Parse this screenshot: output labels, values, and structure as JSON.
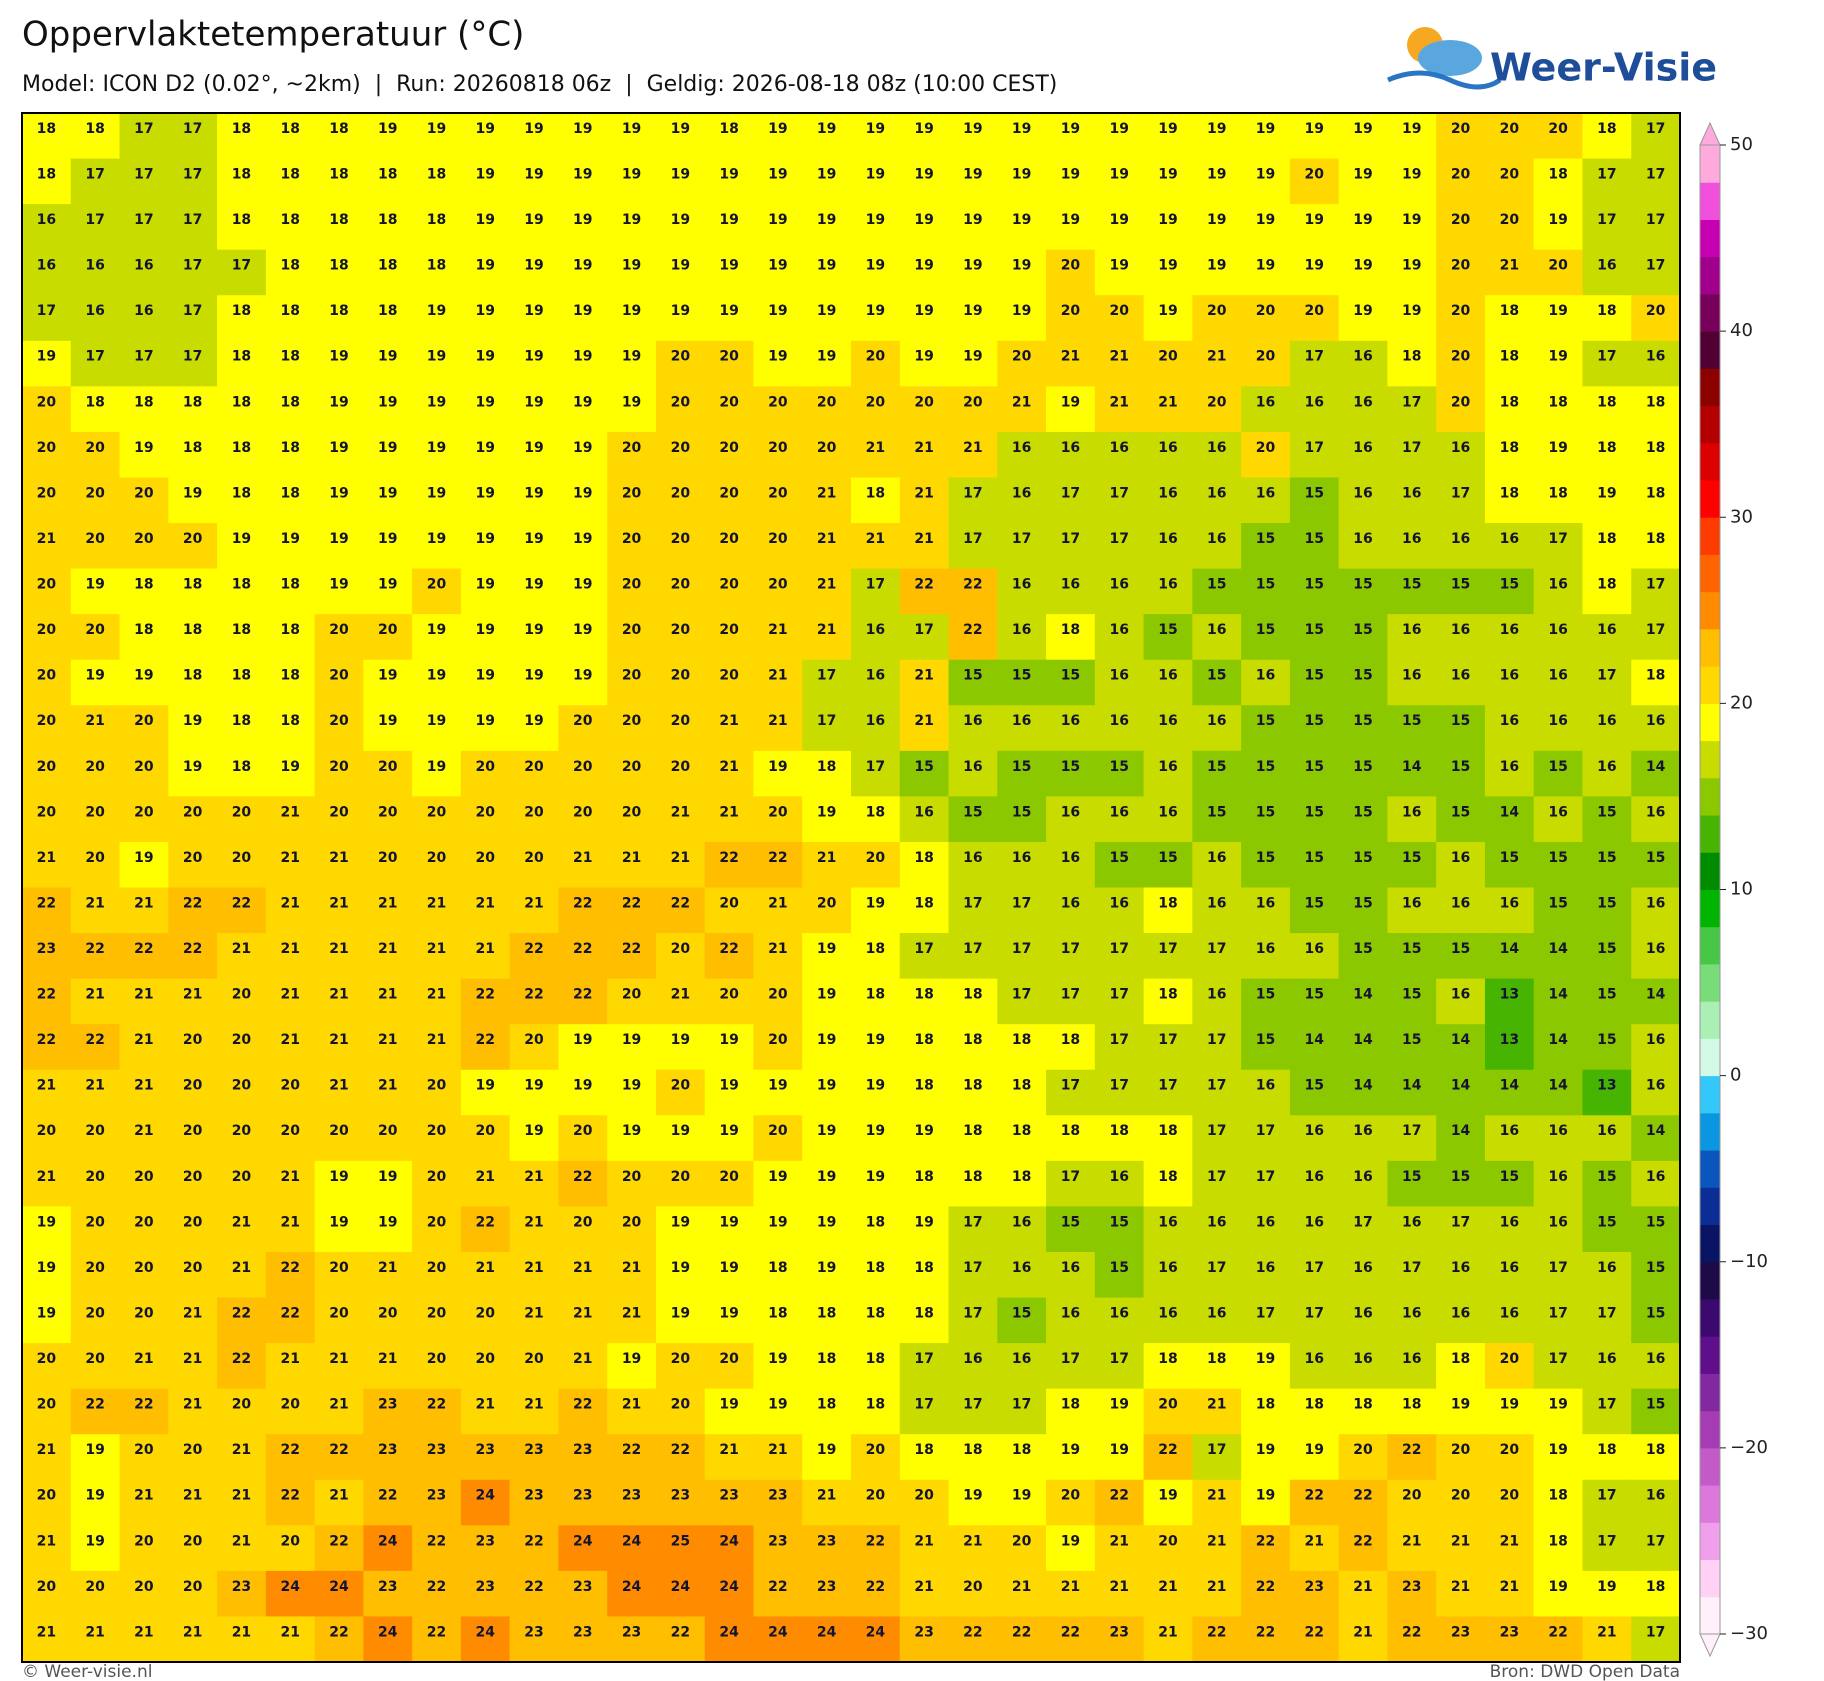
{
  "header": {
    "title": "Oppervlaktetemperatuur (°C)",
    "subtitle": "Model: ICON D2 (0.02°, ~2km)  |  Run: 20260818 06z  |  Geldig: 2026-08-18 08z (10:00 CEST)",
    "logo": "Weer-Visie"
  },
  "footer": {
    "copyright": "© Weer-visie.nl",
    "source": "Bron: DWD Open Data"
  },
  "colorbar": {
    "ticks": [
      50,
      40,
      30,
      20,
      10,
      0,
      {
        "value": -10,
        "label": "−10"
      },
      {
        "value": -20,
        "label": "−20"
      },
      {
        "value": -30,
        "label": "−30"
      }
    ],
    "colors": [
      "#fff0fa",
      "#ffd2f5",
      "#f0a0eb",
      "#dc78dc",
      "#c35ac8",
      "#a53cb4",
      "#8228a0",
      "#5f0f8c",
      "#3c0a6e",
      "#1e0a46",
      "#0a1464",
      "#0a2d96",
      "#0a55be",
      "#0a96e1",
      "#32c8fa",
      "#d2fae6",
      "#aaf0b4",
      "#78dc78",
      "#46c846",
      "#00b400",
      "#008c00",
      "#46b400",
      "#8cc800",
      "#c8dc00",
      "#ffff00",
      "#ffd800",
      "#ffbe00",
      "#ff8c00",
      "#ff6400",
      "#ff3c00",
      "#ff0000",
      "#dc0000",
      "#b40000",
      "#8c0000",
      "#500032",
      "#78005a",
      "#a0008c",
      "#c800b4",
      "#f050dc",
      "#ffaadc"
    ]
  },
  "map": {
    "values": [
      [
        18,
        18,
        17,
        17,
        18,
        18,
        18,
        19,
        19,
        19,
        19,
        19,
        19,
        19,
        18,
        19,
        19,
        19,
        19,
        19,
        19,
        19,
        19,
        19,
        19,
        19,
        19,
        19,
        19,
        20,
        20,
        20,
        18,
        17
      ],
      [
        18,
        17,
        17,
        17,
        18,
        18,
        18,
        18,
        18,
        19,
        19,
        19,
        19,
        19,
        19,
        19,
        19,
        19,
        19,
        19,
        19,
        19,
        19,
        19,
        19,
        19,
        20,
        19,
        19,
        20,
        20,
        18,
        17,
        17
      ],
      [
        16,
        17,
        17,
        17,
        18,
        18,
        18,
        18,
        18,
        19,
        19,
        19,
        19,
        19,
        19,
        19,
        19,
        19,
        19,
        19,
        19,
        19,
        19,
        19,
        19,
        19,
        19,
        19,
        19,
        20,
        20,
        19,
        17,
        17
      ],
      [
        16,
        16,
        16,
        17,
        17,
        18,
        18,
        18,
        18,
        19,
        19,
        19,
        19,
        19,
        19,
        19,
        19,
        19,
        19,
        19,
        19,
        20,
        19,
        19,
        19,
        19,
        19,
        19,
        19,
        20,
        21,
        20,
        16,
        17
      ],
      [
        17,
        16,
        16,
        17,
        18,
        18,
        18,
        18,
        19,
        19,
        19,
        19,
        19,
        19,
        19,
        19,
        19,
        19,
        19,
        19,
        19,
        20,
        20,
        19,
        20,
        20,
        20,
        19,
        19,
        20,
        18,
        19,
        18,
        20
      ],
      [
        19,
        17,
        17,
        17,
        18,
        18,
        19,
        19,
        19,
        19,
        19,
        19,
        19,
        20,
        20,
        19,
        19,
        20,
        19,
        19,
        20,
        21,
        21,
        20,
        21,
        20,
        17,
        16,
        18,
        20,
        18,
        19,
        17,
        16
      ],
      [
        20,
        18,
        18,
        18,
        18,
        18,
        19,
        19,
        19,
        19,
        19,
        19,
        19,
        20,
        20,
        20,
        20,
        20,
        20,
        20,
        21,
        19,
        21,
        21,
        20,
        16,
        16,
        16,
        17,
        20,
        18,
        18,
        18,
        18
      ],
      [
        20,
        20,
        19,
        18,
        18,
        18,
        19,
        19,
        19,
        19,
        19,
        19,
        20,
        20,
        20,
        20,
        20,
        21,
        21,
        21,
        16,
        16,
        16,
        16,
        16,
        20,
        17,
        16,
        17,
        16,
        18,
        19,
        18,
        18
      ],
      [
        20,
        20,
        20,
        19,
        18,
        18,
        19,
        19,
        19,
        19,
        19,
        19,
        20,
        20,
        20,
        20,
        21,
        18,
        21,
        17,
        16,
        17,
        17,
        16,
        16,
        16,
        15,
        16,
        16,
        17,
        18,
        18,
        19,
        18
      ],
      [
        21,
        20,
        20,
        20,
        19,
        19,
        19,
        19,
        19,
        19,
        19,
        19,
        20,
        20,
        20,
        20,
        21,
        21,
        21,
        17,
        17,
        17,
        17,
        16,
        16,
        15,
        15,
        16,
        16,
        16,
        16,
        17,
        18,
        18
      ],
      [
        20,
        19,
        18,
        18,
        18,
        18,
        19,
        19,
        20,
        19,
        19,
        19,
        20,
        20,
        20,
        20,
        21,
        17,
        22,
        22,
        16,
        16,
        16,
        16,
        15,
        15,
        15,
        15,
        15,
        15,
        15,
        16,
        18,
        17
      ],
      [
        20,
        20,
        18,
        18,
        18,
        18,
        20,
        20,
        19,
        19,
        19,
        19,
        20,
        20,
        20,
        21,
        21,
        16,
        17,
        22,
        16,
        18,
        16,
        15,
        16,
        15,
        15,
        15,
        16,
        16,
        16,
        16,
        16,
        17
      ],
      [
        20,
        19,
        19,
        18,
        18,
        18,
        20,
        19,
        19,
        19,
        19,
        19,
        20,
        20,
        20,
        21,
        17,
        16,
        21,
        15,
        15,
        15,
        16,
        16,
        15,
        16,
        15,
        15,
        16,
        16,
        16,
        16,
        17,
        18
      ],
      [
        20,
        21,
        20,
        19,
        18,
        18,
        20,
        19,
        19,
        19,
        19,
        20,
        20,
        20,
        21,
        21,
        17,
        16,
        21,
        16,
        16,
        16,
        16,
        16,
        16,
        15,
        15,
        15,
        15,
        15,
        16,
        16,
        16,
        16
      ],
      [
        20,
        20,
        20,
        19,
        18,
        19,
        20,
        20,
        19,
        20,
        20,
        20,
        20,
        20,
        21,
        19,
        18,
        17,
        15,
        16,
        15,
        15,
        15,
        16,
        15,
        15,
        15,
        15,
        14,
        15,
        16,
        15,
        16,
        14
      ],
      [
        20,
        20,
        20,
        20,
        20,
        21,
        20,
        20,
        20,
        20,
        20,
        20,
        20,
        21,
        21,
        20,
        19,
        18,
        16,
        15,
        15,
        16,
        16,
        16,
        15,
        15,
        15,
        15,
        16,
        15,
        14,
        16,
        15,
        16
      ],
      [
        21,
        20,
        19,
        20,
        20,
        21,
        21,
        20,
        20,
        20,
        20,
        21,
        21,
        21,
        22,
        22,
        21,
        20,
        18,
        16,
        16,
        16,
        15,
        15,
        16,
        15,
        15,
        15,
        15,
        16,
        15,
        15,
        15,
        15
      ],
      [
        22,
        21,
        21,
        22,
        22,
        21,
        21,
        21,
        21,
        21,
        21,
        22,
        22,
        22,
        20,
        21,
        20,
        19,
        18,
        17,
        17,
        16,
        16,
        18,
        16,
        16,
        15,
        15,
        16,
        16,
        16,
        15,
        15,
        16
      ],
      [
        23,
        22,
        22,
        22,
        21,
        21,
        21,
        21,
        21,
        21,
        22,
        22,
        22,
        20,
        22,
        21,
        19,
        18,
        17,
        17,
        17,
        17,
        17,
        17,
        17,
        16,
        16,
        15,
        15,
        15,
        14,
        14,
        15,
        16
      ],
      [
        22,
        21,
        21,
        21,
        20,
        21,
        21,
        21,
        21,
        22,
        22,
        22,
        20,
        21,
        20,
        20,
        19,
        18,
        18,
        18,
        17,
        17,
        17,
        18,
        16,
        15,
        15,
        14,
        15,
        16,
        13,
        14,
        15,
        14
      ],
      [
        22,
        22,
        21,
        20,
        20,
        21,
        21,
        21,
        21,
        22,
        20,
        19,
        19,
        19,
        19,
        20,
        19,
        19,
        18,
        18,
        18,
        18,
        17,
        17,
        17,
        15,
        14,
        14,
        15,
        14,
        13,
        14,
        15,
        16
      ],
      [
        21,
        21,
        21,
        20,
        20,
        20,
        21,
        21,
        20,
        19,
        19,
        19,
        19,
        20,
        19,
        19,
        19,
        19,
        18,
        18,
        18,
        17,
        17,
        17,
        17,
        16,
        15,
        14,
        14,
        14,
        14,
        14,
        13,
        16
      ],
      [
        20,
        20,
        21,
        20,
        20,
        20,
        20,
        20,
        20,
        20,
        19,
        20,
        19,
        19,
        19,
        20,
        19,
        19,
        19,
        18,
        18,
        18,
        18,
        18,
        17,
        17,
        16,
        16,
        17,
        14,
        16,
        16,
        16,
        14
      ],
      [
        21,
        20,
        20,
        20,
        20,
        21,
        19,
        19,
        20,
        21,
        21,
        22,
        20,
        20,
        20,
        19,
        19,
        19,
        18,
        18,
        18,
        17,
        16,
        18,
        17,
        17,
        16,
        16,
        15,
        15,
        15,
        16,
        15,
        16
      ],
      [
        19,
        20,
        20,
        20,
        21,
        21,
        19,
        19,
        20,
        22,
        21,
        20,
        20,
        19,
        19,
        19,
        19,
        18,
        19,
        17,
        16,
        15,
        15,
        16,
        16,
        16,
        16,
        17,
        16,
        17,
        16,
        16,
        15,
        15
      ],
      [
        19,
        20,
        20,
        20,
        21,
        22,
        20,
        21,
        20,
        21,
        21,
        21,
        21,
        19,
        19,
        18,
        19,
        18,
        18,
        17,
        16,
        16,
        15,
        16,
        17,
        16,
        17,
        16,
        17,
        16,
        16,
        17,
        16,
        15
      ],
      [
        19,
        20,
        20,
        21,
        22,
        22,
        20,
        20,
        20,
        20,
        21,
        21,
        21,
        19,
        19,
        18,
        18,
        18,
        18,
        17,
        15,
        16,
        16,
        16,
        16,
        17,
        17,
        16,
        16,
        16,
        16,
        17,
        17,
        15
      ],
      [
        20,
        20,
        21,
        21,
        22,
        21,
        21,
        21,
        20,
        20,
        20,
        21,
        19,
        20,
        20,
        19,
        18,
        18,
        17,
        16,
        16,
        17,
        17,
        18,
        18,
        19,
        16,
        16,
        16,
        18,
        20,
        17,
        16,
        16
      ],
      [
        20,
        22,
        22,
        21,
        20,
        20,
        21,
        23,
        22,
        21,
        21,
        22,
        21,
        20,
        19,
        19,
        18,
        18,
        17,
        17,
        17,
        18,
        19,
        20,
        21,
        18,
        18,
        18,
        18,
        19,
        19,
        19,
        17,
        15
      ],
      [
        21,
        19,
        20,
        20,
        21,
        22,
        22,
        23,
        23,
        23,
        23,
        23,
        22,
        22,
        21,
        21,
        19,
        20,
        18,
        18,
        18,
        19,
        19,
        22,
        17,
        19,
        19,
        20,
        22,
        20,
        20,
        19,
        18,
        18
      ],
      [
        20,
        19,
        21,
        21,
        21,
        22,
        21,
        22,
        23,
        24,
        23,
        23,
        23,
        23,
        23,
        23,
        21,
        20,
        20,
        19,
        19,
        20,
        22,
        19,
        21,
        19,
        22,
        22,
        20,
        20,
        20,
        18,
        17,
        16
      ],
      [
        21,
        19,
        20,
        20,
        21,
        20,
        22,
        24,
        22,
        23,
        22,
        24,
        24,
        25,
        24,
        23,
        23,
        22,
        21,
        21,
        20,
        19,
        21,
        20,
        21,
        22,
        21,
        22,
        21,
        21,
        21,
        18,
        17,
        17
      ],
      [
        20,
        20,
        20,
        20,
        23,
        24,
        24,
        23,
        22,
        23,
        22,
        23,
        24,
        24,
        24,
        22,
        23,
        22,
        21,
        20,
        21,
        21,
        21,
        21,
        21,
        22,
        23,
        21,
        23,
        21,
        21,
        19,
        19,
        18
      ],
      [
        21,
        21,
        21,
        21,
        21,
        21,
        22,
        24,
        22,
        24,
        23,
        23,
        23,
        22,
        24,
        24,
        24,
        24,
        23,
        22,
        22,
        22,
        23,
        21,
        22,
        22,
        22,
        21,
        22,
        23,
        23,
        22,
        21,
        17
      ]
    ]
  }
}
